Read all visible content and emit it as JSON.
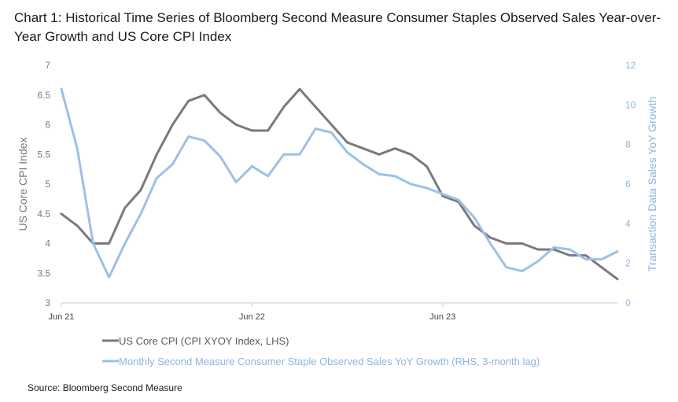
{
  "title": "Chart 1: Historical Time Series of Bloomberg Second Measure Consumer Staples Observed Sales Year-over-Year Growth and US Core CPI Index",
  "source": "Source: Bloomberg Second Measure",
  "chart_data": {
    "type": "line",
    "title": "Chart 1: Historical Time Series of Bloomberg Second Measure Consumer Staples Observed Sales Year-over-Year Growth and US Core CPI Index",
    "xlabel": "",
    "ylabel_left": "US Core CPI Index",
    "ylabel_right": "Transaction Data Sales YoY Growth",
    "x_tick_labels": [
      "Jun 21",
      "Jun 22",
      "Jun 23"
    ],
    "x_tick_index": [
      0,
      12,
      24
    ],
    "x_count": 36,
    "ylim_left": [
      3,
      7
    ],
    "yticks_left": [
      "3",
      "3.5",
      "4",
      "4.5",
      "5",
      "5.5",
      "6",
      "6.5",
      "7"
    ],
    "yticks_left_values": [
      3,
      3.5,
      4,
      4.5,
      5,
      5.5,
      6,
      6.5,
      7
    ],
    "ylim_right": [
      0,
      12
    ],
    "yticks_right": [
      "0",
      "2",
      "4",
      "6",
      "8",
      "10",
      "12"
    ],
    "yticks_right_values": [
      0,
      2,
      4,
      6,
      8,
      10,
      12
    ],
    "series": [
      {
        "name": "US Core CPI (CPI XYOY Index, LHS)",
        "axis": "left",
        "color": "#7a7a7a",
        "values": [
          4.5,
          4.3,
          4.0,
          4.0,
          4.6,
          4.9,
          5.5,
          6.0,
          6.4,
          6.5,
          6.2,
          6.0,
          5.9,
          5.9,
          6.3,
          6.6,
          6.3,
          6.0,
          5.7,
          5.6,
          5.5,
          5.6,
          5.5,
          5.3,
          4.8,
          4.7,
          4.3,
          4.1,
          4.0,
          4.0,
          3.9,
          3.9,
          3.8,
          3.8,
          3.6,
          3.4
        ]
      },
      {
        "name": "Monthly Second Measure Consumer Staple Observed Sales YoY Growth (RHS, 3-month lag)",
        "axis": "right",
        "color": "#9dc0e6",
        "values": [
          10.8,
          7.8,
          3.0,
          1.3,
          3.0,
          4.5,
          6.3,
          7.0,
          8.4,
          8.2,
          7.4,
          6.1,
          6.9,
          6.4,
          7.5,
          7.5,
          8.8,
          8.6,
          7.6,
          7.0,
          6.5,
          6.4,
          6.0,
          5.8,
          5.5,
          5.2,
          4.3,
          3.0,
          1.8,
          1.6,
          2.1,
          2.8,
          2.7,
          2.2,
          2.2,
          2.6
        ]
      }
    ],
    "legend": [
      "US Core CPI (CPI XYOY Index, LHS)",
      "Monthly Second Measure Consumer Staple Observed Sales YoY Growth (RHS, 3-month lag)"
    ],
    "legend_position": "bottom",
    "grid": false
  }
}
